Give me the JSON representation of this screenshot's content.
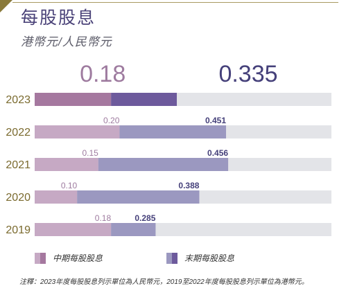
{
  "header": {
    "title": "每股股息",
    "subtitle": "港幣元/人民幣元"
  },
  "colors": {
    "interim_light": "#c6a9c4",
    "interim_dark": "#a5789f",
    "final_light": "#9b98c0",
    "final_dark": "#6d5a9c",
    "track": "#e3e4e8",
    "year_text": "#7a6a2e",
    "interim_text": "#9e7b9f",
    "final_text": "#45407a"
  },
  "legend": {
    "interim_label": "中期每股股息",
    "final_label": "末期每股股息"
  },
  "footnote": "注釋：2023年度每股股息列示單位為人民幣元，2019至2022年度每股股息列示單位為港幣元。",
  "chart_data": {
    "type": "bar",
    "orientation": "horizontal",
    "stacked": true,
    "categories": [
      "2023",
      "2022",
      "2021",
      "2020",
      "2019"
    ],
    "series": [
      {
        "name": "中期每股股息",
        "values": [
          0.18,
          0.2,
          0.15,
          0.1,
          0.18
        ]
      },
      {
        "name": "末期每股股息",
        "values": [
          0.335,
          0.451,
          0.456,
          0.388,
          0.285
        ]
      }
    ],
    "labels": {
      "interim": [
        "0.18",
        "0.20",
        "0.15",
        "0.10",
        "0.18"
      ],
      "final": [
        "0.335",
        "0.451",
        "0.456",
        "0.388",
        "0.285"
      ]
    },
    "legend_position": "bottom-left"
  }
}
